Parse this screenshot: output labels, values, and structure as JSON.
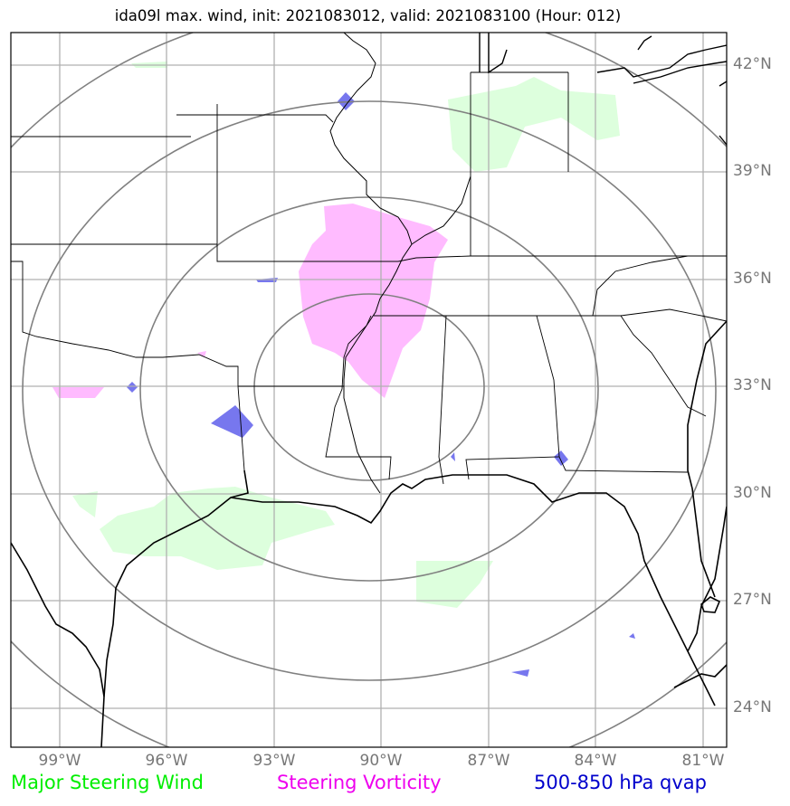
{
  "title": "ida09l max. wind, init: 2021083012, valid: 2021083100 (Hour: 012)",
  "lat_labels": [
    "42°N",
    "39°N",
    "36°N",
    "33°N",
    "30°N",
    "27°N",
    "24°N"
  ],
  "lon_labels": [
    "99°W",
    "96°W",
    "93°W",
    "90°W",
    "87°W",
    "84°W",
    "81°W"
  ],
  "legend": {
    "wind": "Major Steering Wind",
    "vorticity": "Steering Vorticity",
    "qvap": "500-850 hPa qvap"
  },
  "colors": {
    "wind": "#00ee00",
    "vorticity": "#ee00ee",
    "qvap": "#0000cc",
    "wind_fill": "#ddffdd",
    "vorticity_fill": "#ffbbff",
    "qvap_fill": "#7777ee",
    "grid": "#b0b0b0",
    "range_ring": "#808080",
    "tick_label": "#777777"
  }
}
